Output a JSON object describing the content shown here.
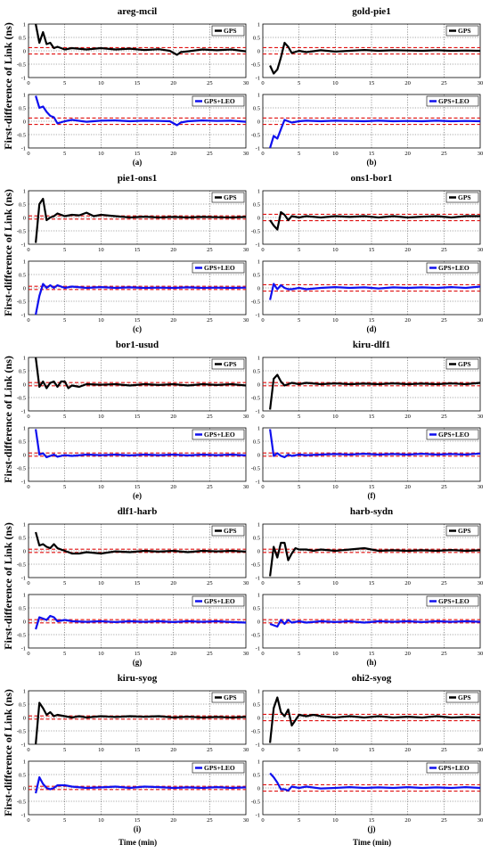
{
  "figure": {
    "ylabel": "First-difference of Link (ns)",
    "xlabel": "Time (min)",
    "colors": {
      "gps": "#000000",
      "leo": "#1010ee",
      "threshold": "#e01010",
      "grid": "#555555"
    }
  },
  "chart_data": [
    {
      "id": "a",
      "title": "areg-mcil",
      "panel_label": "(a)",
      "type": "line",
      "x_range": [
        0,
        30
      ],
      "y_range": [
        -1,
        1
      ],
      "xticks": [
        0,
        5,
        10,
        15,
        20,
        25,
        30
      ],
      "yticks": [
        -1,
        -0.5,
        0,
        0.5,
        1
      ],
      "grid": true,
      "threshold": [
        0.12,
        -0.12
      ],
      "gps": {
        "name": "GPS",
        "x": [
          1,
          1.5,
          2,
          2.5,
          3,
          3.5,
          4,
          5,
          6,
          8,
          10,
          12,
          14,
          16,
          18,
          19.5,
          20.5,
          21,
          22,
          24,
          26,
          28,
          30
        ],
        "y": [
          1.0,
          0.3,
          0.7,
          0.25,
          0.3,
          0.1,
          0.15,
          0.05,
          0.1,
          0.05,
          0.1,
          0.05,
          0.08,
          0.03,
          0.06,
          0.0,
          -0.15,
          -0.05,
          -0.02,
          0.05,
          0.02,
          0.05,
          -0.02
        ]
      },
      "leo": {
        "name": "GPS+LEO",
        "x": [
          1,
          1.5,
          2,
          2.5,
          3,
          3.5,
          4,
          5,
          6,
          8,
          10,
          12,
          14,
          16,
          18,
          19.5,
          20.5,
          21,
          22,
          24,
          26,
          28,
          30
        ],
        "y": [
          0.95,
          0.5,
          0.55,
          0.35,
          0.2,
          0.15,
          -0.08,
          0.0,
          0.05,
          -0.02,
          0.02,
          0.03,
          0.0,
          0.02,
          0.01,
          0.0,
          -0.15,
          -0.05,
          0.0,
          0.03,
          0.01,
          0.02,
          -0.02
        ]
      }
    },
    {
      "id": "b",
      "title": "gold-pie1",
      "panel_label": "(b)",
      "type": "line",
      "x_range": [
        0,
        30
      ],
      "y_range": [
        -1,
        1
      ],
      "xticks": [
        0,
        5,
        10,
        15,
        20,
        25,
        30
      ],
      "yticks": [
        -1,
        -0.5,
        0,
        0.5,
        1
      ],
      "grid": true,
      "threshold": [
        0.12,
        -0.12
      ],
      "gps": {
        "name": "GPS",
        "x": [
          1,
          1.5,
          2,
          2.5,
          3,
          3.5,
          4,
          5,
          6,
          8,
          10,
          12,
          14,
          16,
          18,
          20,
          22,
          24,
          26,
          28,
          30
        ],
        "y": [
          -0.55,
          -0.85,
          -0.7,
          -0.25,
          0.3,
          0.15,
          -0.08,
          0.0,
          -0.05,
          0.02,
          -0.03,
          0.0,
          0.03,
          0.0,
          0.02,
          0.01,
          0.0,
          0.02,
          0.0,
          0.01,
          0.0
        ]
      },
      "leo": {
        "name": "GPS+LEO",
        "x": [
          1,
          1.5,
          2,
          2.5,
          3,
          4,
          5,
          6,
          8,
          10,
          12,
          14,
          16,
          18,
          20,
          22,
          24,
          26,
          28,
          30
        ],
        "y": [
          -1.0,
          -0.55,
          -0.65,
          -0.3,
          0.05,
          -0.05,
          0.0,
          0.02,
          0.0,
          0.02,
          0.01,
          0.0,
          0.02,
          0.0,
          0.01,
          0.0,
          0.02,
          0.0,
          0.01,
          0.0
        ]
      }
    },
    {
      "id": "c",
      "title": "pie1-ons1",
      "panel_label": "(c)",
      "type": "line",
      "x_range": [
        0,
        30
      ],
      "y_range": [
        -1,
        1
      ],
      "xticks": [
        0,
        5,
        10,
        15,
        20,
        25,
        30
      ],
      "yticks": [
        -1,
        -0.5,
        0,
        0.5,
        1
      ],
      "grid": true,
      "threshold": [
        0.06,
        -0.06
      ],
      "gps": {
        "name": "GPS",
        "x": [
          1,
          1.5,
          2,
          2.5,
          3,
          3.5,
          4,
          5,
          6,
          7,
          8,
          9,
          10,
          12,
          14,
          16,
          18,
          20,
          22,
          24,
          26,
          28,
          30
        ],
        "y": [
          -0.95,
          0.5,
          0.7,
          -0.1,
          0.0,
          0.05,
          0.15,
          0.05,
          0.1,
          0.08,
          0.18,
          0.05,
          0.1,
          0.05,
          0.0,
          0.03,
          0.0,
          0.02,
          0.0,
          0.02,
          0.01,
          0.0,
          0.02
        ]
      },
      "leo": {
        "name": "GPS+LEO",
        "x": [
          1,
          1.5,
          2,
          2.5,
          3,
          3.5,
          4,
          5,
          6,
          8,
          10,
          12,
          14,
          16,
          18,
          20,
          22,
          24,
          26,
          28,
          30
        ],
        "y": [
          -1.0,
          -0.3,
          0.15,
          0.0,
          0.1,
          0.0,
          0.1,
          0.0,
          0.05,
          0.0,
          0.03,
          0.0,
          0.02,
          0.0,
          0.01,
          0.0,
          0.02,
          0.0,
          0.01,
          0.0,
          0.01
        ]
      }
    },
    {
      "id": "d",
      "title": "ons1-bor1",
      "panel_label": "(d)",
      "type": "line",
      "x_range": [
        0,
        30
      ],
      "y_range": [
        -1,
        1
      ],
      "xticks": [
        0,
        5,
        10,
        15,
        20,
        25,
        30
      ],
      "yticks": [
        -1,
        -0.5,
        0,
        0.5,
        1
      ],
      "grid": true,
      "threshold": [
        0.12,
        -0.12
      ],
      "gps": {
        "name": "GPS",
        "x": [
          1,
          1.5,
          2,
          2.5,
          3,
          3.5,
          4,
          5,
          6,
          8,
          10,
          12,
          14,
          16,
          18,
          20,
          22,
          24,
          26,
          28,
          30
        ],
        "y": [
          -0.1,
          -0.3,
          -0.45,
          0.2,
          0.1,
          -0.1,
          0.05,
          0.0,
          0.05,
          0.0,
          0.05,
          0.02,
          0.05,
          0.0,
          0.05,
          0.0,
          0.03,
          0.05,
          0.0,
          0.05,
          0.05
        ]
      },
      "leo": {
        "name": "GPS+LEO",
        "x": [
          1,
          1.5,
          2,
          2.5,
          3,
          3.5,
          4,
          5,
          6,
          8,
          10,
          12,
          14,
          16,
          18,
          20,
          22,
          24,
          26,
          28,
          30
        ],
        "y": [
          -0.45,
          0.15,
          -0.05,
          0.1,
          0.0,
          -0.05,
          -0.05,
          0.0,
          -0.05,
          0.0,
          0.03,
          0.0,
          0.02,
          -0.02,
          0.02,
          0.0,
          0.02,
          0.0,
          0.03,
          0.0,
          0.05
        ]
      }
    },
    {
      "id": "e",
      "title": "bor1-usud",
      "panel_label": "(e)",
      "type": "line",
      "x_range": [
        0,
        30
      ],
      "y_range": [
        -1,
        1
      ],
      "xticks": [
        0,
        5,
        10,
        15,
        20,
        25,
        30
      ],
      "yticks": [
        -1,
        -0.5,
        0,
        0.5,
        1
      ],
      "grid": true,
      "threshold": [
        0.06,
        -0.06
      ],
      "gps": {
        "name": "GPS",
        "x": [
          1,
          1.5,
          2,
          2.5,
          3,
          3.5,
          4,
          4.5,
          5,
          5.5,
          6,
          7,
          8,
          10,
          12,
          14,
          16,
          18,
          20,
          22,
          24,
          26,
          28,
          30
        ],
        "y": [
          1.0,
          -0.1,
          0.1,
          -0.15,
          0.05,
          0.1,
          -0.1,
          0.1,
          0.1,
          -0.15,
          -0.05,
          -0.1,
          0.0,
          -0.02,
          0.0,
          -0.05,
          0.0,
          -0.03,
          0.0,
          -0.05,
          0.0,
          -0.03,
          0.0,
          -0.05
        ]
      },
      "leo": {
        "name": "GPS+LEO",
        "x": [
          1,
          1.5,
          2,
          2.5,
          3,
          3.5,
          4,
          5,
          6,
          8,
          10,
          12,
          14,
          16,
          18,
          20,
          22,
          24,
          26,
          28,
          30
        ],
        "y": [
          0.95,
          0.0,
          0.05,
          -0.1,
          -0.05,
          0.0,
          -0.08,
          -0.02,
          -0.05,
          0.0,
          -0.02,
          0.0,
          -0.03,
          0.0,
          -0.02,
          0.0,
          -0.03,
          0.0,
          -0.02,
          0.0,
          -0.03
        ]
      }
    },
    {
      "id": "f",
      "title": "kiru-dlf1",
      "panel_label": "(f)",
      "type": "line",
      "x_range": [
        0,
        30
      ],
      "y_range": [
        -1,
        1
      ],
      "xticks": [
        0,
        5,
        10,
        15,
        20,
        25,
        30
      ],
      "yticks": [
        -1,
        -0.5,
        0,
        0.5,
        1
      ],
      "grid": true,
      "threshold": [
        0.06,
        -0.06
      ],
      "gps": {
        "name": "GPS",
        "x": [
          1,
          1.5,
          2,
          2.5,
          3,
          3.5,
          4,
          5,
          6,
          8,
          10,
          12,
          14,
          16,
          18,
          20,
          22,
          24,
          26,
          28,
          30
        ],
        "y": [
          -0.95,
          0.2,
          0.35,
          0.1,
          -0.05,
          0.0,
          0.05,
          0.0,
          0.05,
          0.0,
          0.03,
          0.0,
          0.02,
          0.0,
          0.03,
          0.0,
          0.02,
          0.0,
          0.03,
          0.0,
          0.05
        ]
      },
      "leo": {
        "name": "GPS+LEO",
        "x": [
          1,
          1.5,
          2,
          2.5,
          3,
          3.5,
          4,
          5,
          6,
          8,
          10,
          12,
          14,
          16,
          18,
          20,
          22,
          24,
          26,
          28,
          30
        ],
        "y": [
          0.95,
          -0.05,
          0.05,
          -0.05,
          -0.1,
          0.0,
          -0.05,
          0.0,
          -0.02,
          0.0,
          0.02,
          0.0,
          0.03,
          0.0,
          0.02,
          0.0,
          0.03,
          0.0,
          0.02,
          0.0,
          0.04
        ]
      }
    },
    {
      "id": "g",
      "title": "dlf1-harb",
      "panel_label": "(g)",
      "type": "line",
      "x_range": [
        0,
        30
      ],
      "y_range": [
        -1,
        1
      ],
      "xticks": [
        0,
        5,
        10,
        15,
        20,
        25,
        30
      ],
      "yticks": [
        -1,
        -0.5,
        0,
        0.5,
        1
      ],
      "grid": true,
      "threshold": [
        0.06,
        -0.06
      ],
      "gps": {
        "name": "GPS",
        "x": [
          1,
          1.5,
          2,
          2.5,
          3,
          3.5,
          4,
          5,
          6,
          7,
          8,
          10,
          12,
          14,
          16,
          18,
          20,
          22,
          24,
          26,
          28,
          30
        ],
        "y": [
          0.7,
          0.2,
          0.25,
          0.15,
          0.1,
          0.25,
          0.1,
          0.0,
          -0.1,
          -0.1,
          -0.05,
          -0.1,
          -0.02,
          -0.05,
          0.0,
          -0.03,
          0.0,
          -0.05,
          0.0,
          -0.02,
          0.0,
          -0.03
        ]
      },
      "leo": {
        "name": "GPS+LEO",
        "x": [
          1,
          1.5,
          2,
          2.5,
          3,
          3.5,
          4,
          5,
          6,
          8,
          10,
          12,
          14,
          16,
          18,
          20,
          22,
          24,
          26,
          28,
          30
        ],
        "y": [
          -0.3,
          0.15,
          0.1,
          0.05,
          0.2,
          0.15,
          0.0,
          0.05,
          0.0,
          -0.02,
          0.0,
          -0.03,
          0.0,
          -0.02,
          0.0,
          -0.03,
          0.0,
          -0.02,
          0.0,
          -0.03,
          -0.05
        ]
      }
    },
    {
      "id": "h",
      "title": "harb-sydn",
      "panel_label": "(h)",
      "type": "line",
      "x_range": [
        0,
        30
      ],
      "y_range": [
        -1,
        1
      ],
      "xticks": [
        0,
        5,
        10,
        15,
        20,
        25,
        30
      ],
      "yticks": [
        -1,
        -0.5,
        0,
        0.5,
        1
      ],
      "grid": true,
      "threshold": [
        0.06,
        -0.06
      ],
      "gps": {
        "name": "GPS",
        "x": [
          1,
          1.5,
          2,
          2.5,
          3,
          3.5,
          4,
          4.5,
          5,
          6,
          7,
          8,
          10,
          12,
          14,
          15,
          16,
          18,
          20,
          22,
          24,
          26,
          28,
          30
        ],
        "y": [
          -0.95,
          0.15,
          -0.25,
          0.3,
          0.3,
          -0.35,
          -0.1,
          0.1,
          0.05,
          0.05,
          0.0,
          0.05,
          0.0,
          0.05,
          0.1,
          0.05,
          0.0,
          0.02,
          0.0,
          0.02,
          0.0,
          0.03,
          0.0,
          0.02
        ]
      },
      "leo": {
        "name": "GPS+LEO",
        "x": [
          1,
          1.5,
          2,
          2.5,
          3,
          3.5,
          4,
          5,
          6,
          8,
          10,
          12,
          14,
          16,
          18,
          20,
          22,
          24,
          26,
          28,
          30
        ],
        "y": [
          -0.1,
          -0.15,
          -0.2,
          0.05,
          -0.1,
          0.05,
          -0.05,
          0.0,
          -0.05,
          0.0,
          -0.03,
          0.0,
          -0.05,
          0.0,
          -0.02,
          0.0,
          -0.03,
          0.0,
          -0.02,
          0.0,
          -0.02
        ]
      }
    },
    {
      "id": "i",
      "title": "kiru-syog",
      "panel_label": "(i)",
      "type": "line",
      "x_range": [
        0,
        30
      ],
      "y_range": [
        -1,
        1
      ],
      "xticks": [
        0,
        5,
        10,
        15,
        20,
        25,
        30
      ],
      "yticks": [
        -1,
        -0.5,
        0,
        0.5,
        1
      ],
      "grid": true,
      "threshold": [
        0.06,
        -0.06
      ],
      "gps": {
        "name": "GPS",
        "x": [
          1,
          1.5,
          2,
          2.5,
          3,
          3.5,
          4,
          5,
          6,
          7,
          8,
          10,
          12,
          14,
          16,
          18,
          20,
          22,
          24,
          26,
          28,
          30
        ],
        "y": [
          -1.0,
          0.55,
          0.35,
          0.1,
          0.2,
          0.05,
          0.1,
          0.05,
          0.0,
          0.05,
          0.0,
          0.05,
          0.02,
          0.05,
          0.03,
          0.05,
          0.0,
          0.03,
          0.0,
          0.02,
          0.0,
          0.02
        ]
      },
      "leo": {
        "name": "GPS+LEO",
        "x": [
          1,
          1.5,
          2,
          2.5,
          3,
          3.5,
          4,
          5,
          6,
          8,
          10,
          12,
          14,
          16,
          18,
          20,
          22,
          24,
          26,
          28,
          30
        ],
        "y": [
          -0.2,
          0.4,
          0.15,
          0.0,
          -0.05,
          0.0,
          0.1,
          0.1,
          0.05,
          0.0,
          0.02,
          0.05,
          0.0,
          0.05,
          0.03,
          0.0,
          0.02,
          0.0,
          0.03,
          0.0,
          0.02
        ]
      }
    },
    {
      "id": "j",
      "title": "ohi2-syog",
      "panel_label": "(j)",
      "type": "line",
      "x_range": [
        0,
        30
      ],
      "y_range": [
        -1,
        1
      ],
      "xticks": [
        0,
        5,
        10,
        15,
        20,
        25,
        30
      ],
      "yticks": [
        -1,
        -0.5,
        0,
        0.5,
        1
      ],
      "grid": true,
      "threshold": [
        0.12,
        -0.12
      ],
      "gps": {
        "name": "GPS",
        "x": [
          1,
          1.5,
          2,
          2.5,
          3,
          3.5,
          4,
          5,
          6,
          7,
          8,
          10,
          12,
          14,
          16,
          18,
          20,
          22,
          24,
          26,
          28,
          30
        ],
        "y": [
          -0.95,
          0.35,
          0.75,
          0.2,
          0.05,
          0.3,
          -0.3,
          0.1,
          0.05,
          0.1,
          0.05,
          0.0,
          0.05,
          0.0,
          0.05,
          0.0,
          0.03,
          0.0,
          0.05,
          0.0,
          0.02,
          0.0
        ]
      },
      "leo": {
        "name": "GPS+LEO",
        "x": [
          1,
          1.5,
          2,
          2.5,
          3,
          3.5,
          4,
          5,
          6,
          8,
          10,
          12,
          14,
          16,
          18,
          20,
          22,
          24,
          26,
          28,
          30
        ],
        "y": [
          0.55,
          0.4,
          0.2,
          -0.05,
          -0.05,
          -0.1,
          0.05,
          0.0,
          0.05,
          -0.02,
          0.0,
          0.03,
          0.0,
          0.02,
          0.0,
          0.03,
          0.0,
          0.02,
          0.0,
          0.03,
          0.0
        ]
      }
    }
  ]
}
